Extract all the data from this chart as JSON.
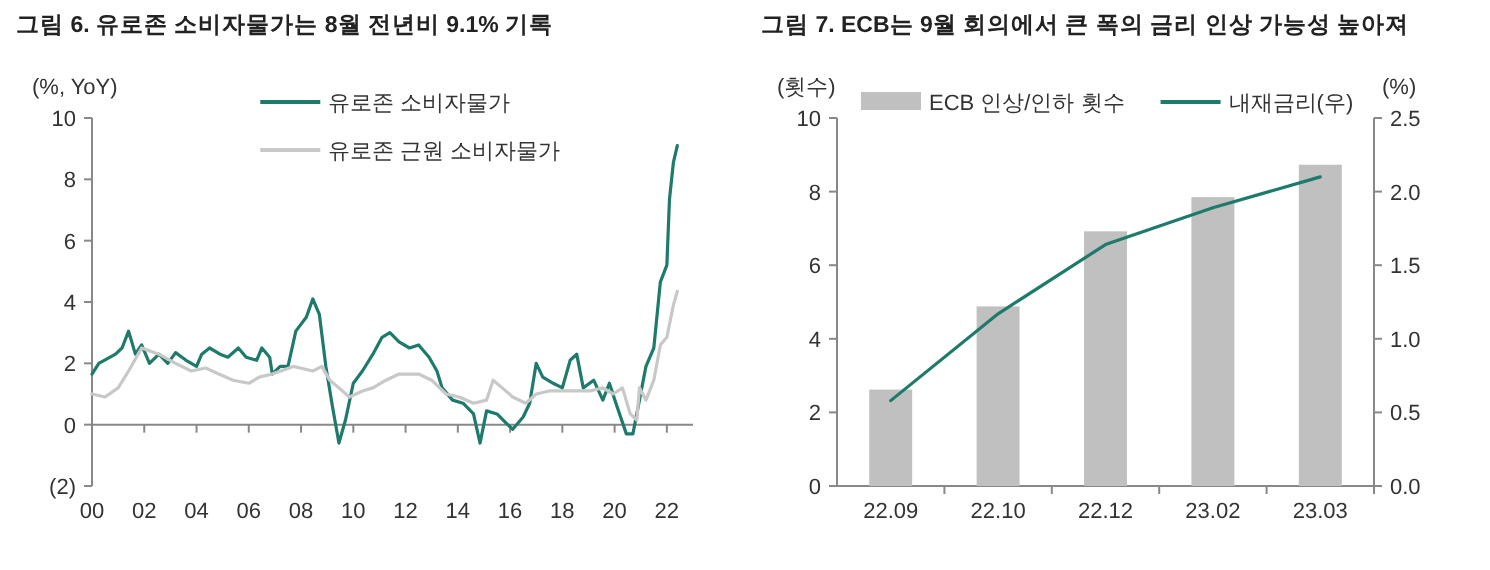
{
  "chart_data": [
    {
      "type": "line",
      "title": "그림 6. 유로존 소비자물가는 8월 전년비 9.1% 기록",
      "ylabel": "(%, YoY)",
      "legend": "top",
      "xlim": [
        2000,
        2023
      ],
      "xticks": [
        {
          "value": 2000,
          "label": "00"
        },
        {
          "value": 2002,
          "label": "02"
        },
        {
          "value": 2004,
          "label": "04"
        },
        {
          "value": 2006,
          "label": "06"
        },
        {
          "value": 2008,
          "label": "08"
        },
        {
          "value": 2010,
          "label": "10"
        },
        {
          "value": 2012,
          "label": "12"
        },
        {
          "value": 2014,
          "label": "14"
        },
        {
          "value": 2016,
          "label": "16"
        },
        {
          "value": 2018,
          "label": "18"
        },
        {
          "value": 2020,
          "label": "20"
        },
        {
          "value": 2022,
          "label": "22"
        }
      ],
      "ylim": [
        -2,
        10
      ],
      "yticks": [
        {
          "value": -2,
          "label": "(2)"
        },
        0,
        2,
        4,
        6,
        8,
        10
      ],
      "series": [
        {
          "name": "유로존 소비자물가",
          "color": "#1e7b6b",
          "x": [
            2000,
            2000.26,
            2000.9,
            2001.15,
            2001.4,
            2001.66,
            2001.9,
            2002.2,
            2002.56,
            2002.9,
            2003.2,
            2003.6,
            2004,
            2004.2,
            2004.5,
            2004.9,
            2005.2,
            2005.6,
            2005.9,
            2006.3,
            2006.5,
            2006.8,
            2006.9,
            2007.2,
            2007.5,
            2007.8,
            2008.2,
            2008.45,
            2008.7,
            2008.95,
            2009.2,
            2009.45,
            2009.7,
            2010,
            2010.35,
            2010.75,
            2011.1,
            2011.4,
            2011.75,
            2012.15,
            2012.5,
            2012.9,
            2013.2,
            2013.4,
            2013.8,
            2014.2,
            2014.6,
            2014.85,
            2015.1,
            2015.5,
            2015.85,
            2016.1,
            2016.5,
            2016.75,
            2017,
            2017.25,
            2017.65,
            2018,
            2018.3,
            2018.55,
            2018.8,
            2019.2,
            2019.55,
            2019.8,
            2020.05,
            2020.45,
            2020.7,
            2020.95,
            2021.2,
            2021.5,
            2021.75,
            2022,
            2022.1,
            2022.25,
            2022.4
          ],
          "values": [
            1.65,
            2.0,
            2.3,
            2.5,
            3.05,
            2.3,
            2.6,
            2.0,
            2.3,
            2.0,
            2.35,
            2.1,
            1.9,
            2.3,
            2.5,
            2.3,
            2.2,
            2.5,
            2.2,
            2.1,
            2.5,
            2.2,
            1.65,
            1.9,
            1.9,
            3.05,
            3.5,
            4.1,
            3.6,
            1.9,
            0.6,
            -0.6,
            0.15,
            1.35,
            1.75,
            2.3,
            2.85,
            3.0,
            2.7,
            2.5,
            2.6,
            2.2,
            1.75,
            1.2,
            0.8,
            0.7,
            0.35,
            -0.6,
            0.45,
            0.35,
            0.05,
            -0.15,
            0.25,
            0.7,
            2.0,
            1.55,
            1.35,
            1.2,
            2.1,
            2.3,
            1.2,
            1.45,
            0.8,
            1.35,
            0.7,
            -0.3,
            -0.3,
            0.8,
            1.9,
            2.5,
            4.65,
            5.2,
            7.35,
            8.55,
            9.1
          ]
        },
        {
          "name": "유로존 근원 소비자물가",
          "color": "#c8c8c8",
          "x": [
            2000,
            2000.5,
            2001,
            2001.4,
            2001.9,
            2002.56,
            2003.2,
            2003.8,
            2004.35,
            2004.85,
            2005.4,
            2006,
            2006.4,
            2006.9,
            2007.7,
            2008.45,
            2008.8,
            2009.1,
            2009.45,
            2009.85,
            2010.35,
            2010.75,
            2011.25,
            2011.75,
            2012.5,
            2013,
            2013.55,
            2014.05,
            2014.6,
            2015.1,
            2015.35,
            2015.7,
            2016.1,
            2016.6,
            2017,
            2017.5,
            2018,
            2018.55,
            2019.05,
            2019.55,
            2019.95,
            2020.3,
            2020.6,
            2020.85,
            2020.95,
            2021.2,
            2021.5,
            2021.75,
            2022,
            2022.25,
            2022.4
          ],
          "values": [
            1.0,
            0.9,
            1.2,
            1.75,
            2.5,
            2.3,
            2.0,
            1.75,
            1.85,
            1.65,
            1.45,
            1.35,
            1.55,
            1.65,
            1.9,
            1.75,
            1.9,
            1.45,
            1.2,
            0.9,
            1.1,
            1.2,
            1.45,
            1.65,
            1.65,
            1.45,
            1.0,
            0.9,
            0.7,
            0.8,
            1.45,
            1.2,
            0.9,
            0.7,
            1.0,
            1.1,
            1.1,
            1.1,
            1.1,
            1.2,
            1.0,
            1.2,
            0.35,
            0.15,
            1.2,
            0.8,
            1.45,
            2.6,
            2.85,
            3.9,
            4.35
          ]
        }
      ]
    },
    {
      "type": "bar",
      "title": "그림 7. ECB는 9월 회의에서 큰 폭의 금리 인상 가능성 높아져",
      "ylabel": "(횟수)",
      "y2label": "(%)",
      "legend": "top",
      "categories": [
        "22.09",
        "22.10",
        "22.12",
        "23.02",
        "23.03"
      ],
      "ylim": [
        0,
        10
      ],
      "yticks": [
        0,
        2,
        4,
        6,
        8,
        10
      ],
      "y2lim": [
        0,
        2.5
      ],
      "y2ticks": [
        {
          "value": 0,
          "label": "0.0"
        },
        {
          "value": 0.5,
          "label": "0.5"
        },
        {
          "value": 1,
          "label": "1.0"
        },
        {
          "value": 1.5,
          "label": "1.5"
        },
        {
          "value": 2,
          "label": "2.0"
        },
        {
          "value": 2.5,
          "label": "2.5"
        }
      ],
      "series": [
        {
          "name": "ECB 인상/인하 횟수",
          "type": "bar",
          "color": "#c0c0c0",
          "values": [
            2.62,
            4.88,
            6.92,
            7.85,
            8.73
          ]
        },
        {
          "name": "내재금리(우)",
          "type": "line",
          "axis": "y2",
          "color": "#1e7b6b",
          "values": [
            0.58,
            1.17,
            1.64,
            1.89,
            2.1
          ]
        }
      ]
    }
  ]
}
